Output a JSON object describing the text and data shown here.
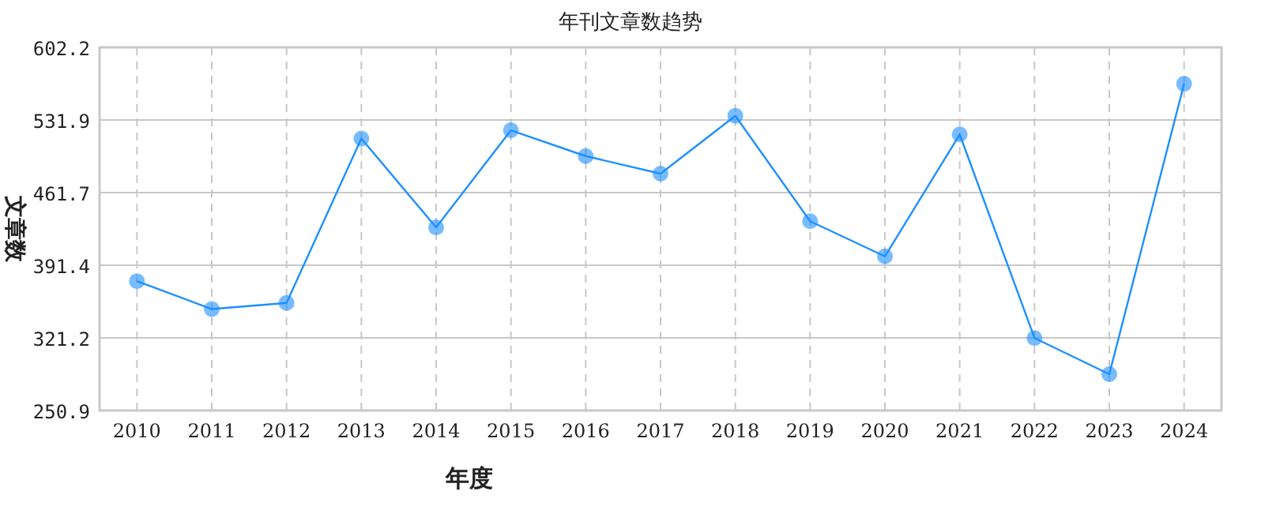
{
  "chart_data": {
    "type": "line",
    "title": "年刊文章数趋势",
    "xlabel": "年度",
    "ylabel": "文章数",
    "categories": [
      "2010",
      "2011",
      "2012",
      "2013",
      "2014",
      "2015",
      "2016",
      "2017",
      "2018",
      "2019",
      "2020",
      "2021",
      "2022",
      "2023",
      "2024"
    ],
    "series": [
      {
        "color": "#1e90ff",
        "values": [
          376,
          349,
          355,
          514,
          428,
          522,
          497,
          480,
          536,
          434,
          400,
          518,
          321,
          286,
          567
        ]
      }
    ],
    "ylim": [
      250.9,
      602.2
    ],
    "yticks": [
      250.9,
      321.2,
      391.4,
      461.7,
      531.9,
      602.2
    ],
    "grid": true,
    "marker": "circle",
    "line_style": "solid"
  }
}
